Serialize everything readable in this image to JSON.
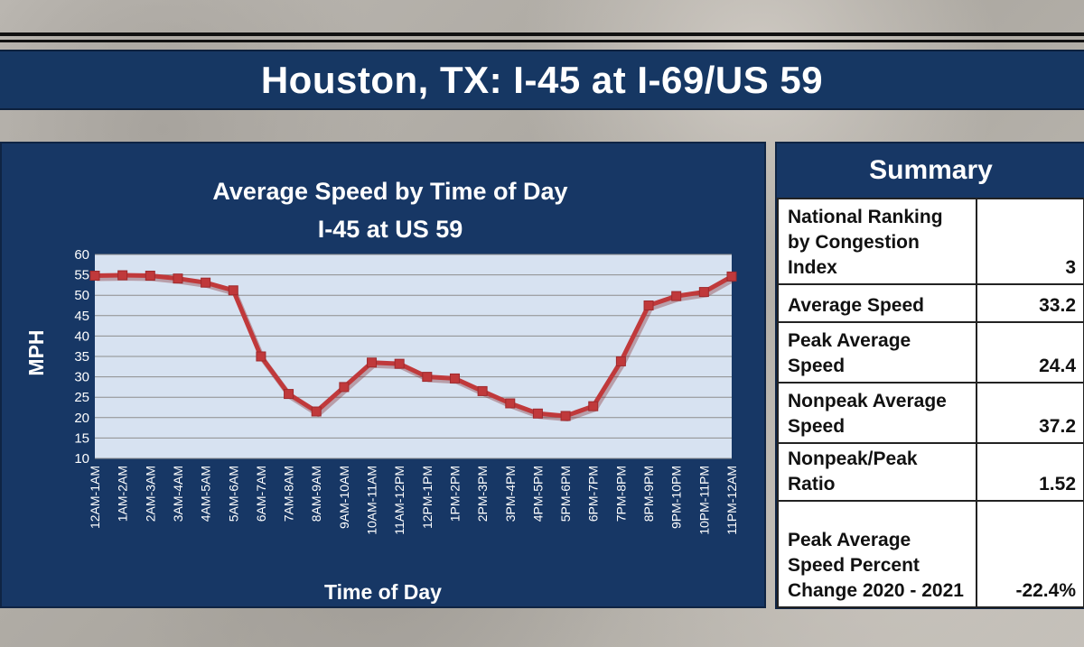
{
  "page": {
    "title": "Houston, TX: I-45 at I-69/US 59"
  },
  "chart_data": {
    "type": "line",
    "title": "Average Speed by Time of Day",
    "subtitle": "I-45 at US 59",
    "xlabel": "Time of Day",
    "ylabel": "MPH",
    "ylim": [
      10,
      60
    ],
    "yticks": [
      10,
      15,
      20,
      25,
      30,
      35,
      40,
      45,
      50,
      55,
      60
    ],
    "grid": true,
    "categories": [
      "12AM-1AM",
      "1AM-2AM",
      "2AM-3AM",
      "3AM-4AM",
      "4AM-5AM",
      "5AM-6AM",
      "6AM-7AM",
      "7AM-8AM",
      "8AM-9AM",
      "9AM-10AM",
      "10AM-11AM",
      "11AM-12PM",
      "12PM-1PM",
      "1PM-2PM",
      "2PM-3PM",
      "3PM-4PM",
      "4PM-5PM",
      "5PM-6PM",
      "6PM-7PM",
      "7PM-8PM",
      "8PM-9PM",
      "9PM-10PM",
      "10PM-11PM",
      "11PM-12AM"
    ],
    "values": [
      54.8,
      54.9,
      54.8,
      54.1,
      53.1,
      51.2,
      35.0,
      25.8,
      21.5,
      27.5,
      33.5,
      33.2,
      30.0,
      29.6,
      26.5,
      23.5,
      21.0,
      20.4,
      22.8,
      33.8,
      47.5,
      49.8,
      50.8,
      54.6
    ],
    "colors": {
      "line": "#c0393b",
      "plot_bg": "#d7e2f1",
      "panel_bg": "#173765"
    }
  },
  "summary": {
    "heading": "Summary",
    "rows": [
      {
        "label": "National Ranking by Congestion Index",
        "value": "3"
      },
      {
        "label": "Average Speed",
        "value": "33.2"
      },
      {
        "label": "Peak Average Speed",
        "value": "24.4"
      },
      {
        "label": "Nonpeak Average Speed",
        "value": "37.2"
      },
      {
        "label": "Nonpeak/Peak Ratio",
        "value": "1.52"
      },
      {
        "label": "Peak Average Speed Percent Change 2020 - 2021",
        "value": "-22.4%"
      }
    ]
  }
}
